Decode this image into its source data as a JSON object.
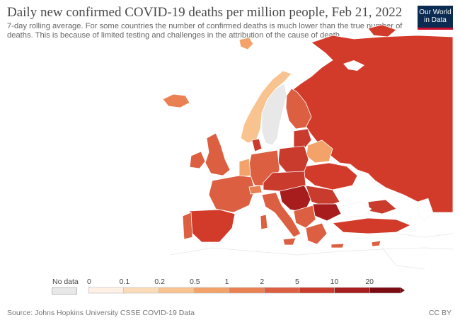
{
  "header": {
    "title": "Daily new confirmed COVID-19 deaths per million people, Feb 21, 2022",
    "subtitle": "7-day rolling average. For some countries the number of confirmed deaths is much lower than the true number of deaths. This is because of limited testing and challenges in the attribution of the cause of death.",
    "logo_line1": "Our World",
    "logo_line2": "in Data"
  },
  "legend": {
    "no_data_label": "No data",
    "ticks": [
      "0",
      "0.1",
      "0.2",
      "0.5",
      "1",
      "2",
      "5",
      "10",
      "20"
    ],
    "colors": [
      "#fef0e4",
      "#fcdcb8",
      "#f8c38f",
      "#f3a36a",
      "#ea8152",
      "#dd5f41",
      "#c93b2c",
      "#a71d1d",
      "#7a0b12"
    ]
  },
  "map": {
    "no_data_color": "#e8e8e8",
    "background_land_color": "#ffffff",
    "border_color": "#ffffff"
  },
  "footer": {
    "source": "Source: Johns Hopkins University CSSE COVID-19 Data",
    "license": "CC BY"
  }
}
